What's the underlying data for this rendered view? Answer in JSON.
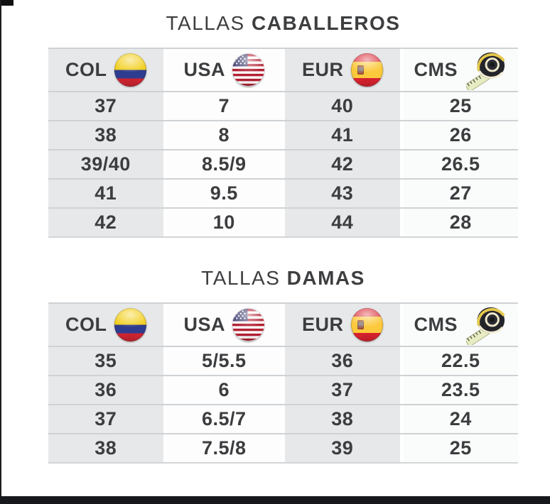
{
  "page": {
    "background": "#ffffff",
    "artifacts": {
      "corner_mark_color": "#101012",
      "left_edge_color": "#1c1c1e",
      "bottom_bar_color": "#17181c"
    }
  },
  "colors": {
    "cell_gray": "#e7e8e9",
    "cell_white": "#fdfdfe",
    "row_line": "#cfd2d4",
    "text": "#3c3d3f",
    "colombia_flag": [
      "#f2cf1d",
      "#2e3c8f",
      "#ce2531"
    ],
    "spain_flag": [
      "#dd3b44",
      "#fcc93c",
      "#d7222e"
    ],
    "usa_flag": [
      "#b22234",
      "#ffffff",
      "#3c3b6e"
    ]
  },
  "chart_data": [
    {
      "type": "table",
      "title": "TALLAS CABALLEROS",
      "title_parts": {
        "regular": "TALLAS",
        "bold": "CABALLEROS"
      },
      "columns": [
        {
          "label": "COL",
          "icon": "colombia-flag-icon"
        },
        {
          "label": "USA",
          "icon": "usa-flag-icon"
        },
        {
          "label": "EUR",
          "icon": "spain-flag-icon"
        },
        {
          "label": "CMS",
          "icon": "tape-measure-icon"
        }
      ],
      "rows": [
        [
          "37",
          "7",
          "40",
          "25"
        ],
        [
          "38",
          "8",
          "41",
          "26"
        ],
        [
          "39/40",
          "8.5/9",
          "42",
          "26.5"
        ],
        [
          "41",
          "9.5",
          "43",
          "27"
        ],
        [
          "42",
          "10",
          "44",
          "28"
        ]
      ]
    },
    {
      "type": "table",
      "title": "TALLAS DAMAS",
      "title_parts": {
        "regular": "TALLAS",
        "bold": "DAMAS"
      },
      "columns": [
        {
          "label": "COL",
          "icon": "colombia-flag-icon"
        },
        {
          "label": "USA",
          "icon": "usa-flag-icon"
        },
        {
          "label": "EUR",
          "icon": "spain-flag-icon"
        },
        {
          "label": "CMS",
          "icon": "tape-measure-icon"
        }
      ],
      "rows": [
        [
          "35",
          "5/5.5",
          "36",
          "22.5"
        ],
        [
          "36",
          "6",
          "37",
          "23.5"
        ],
        [
          "37",
          "6.5/7",
          "38",
          "24"
        ],
        [
          "38",
          "7.5/8",
          "39",
          "25"
        ]
      ]
    }
  ]
}
